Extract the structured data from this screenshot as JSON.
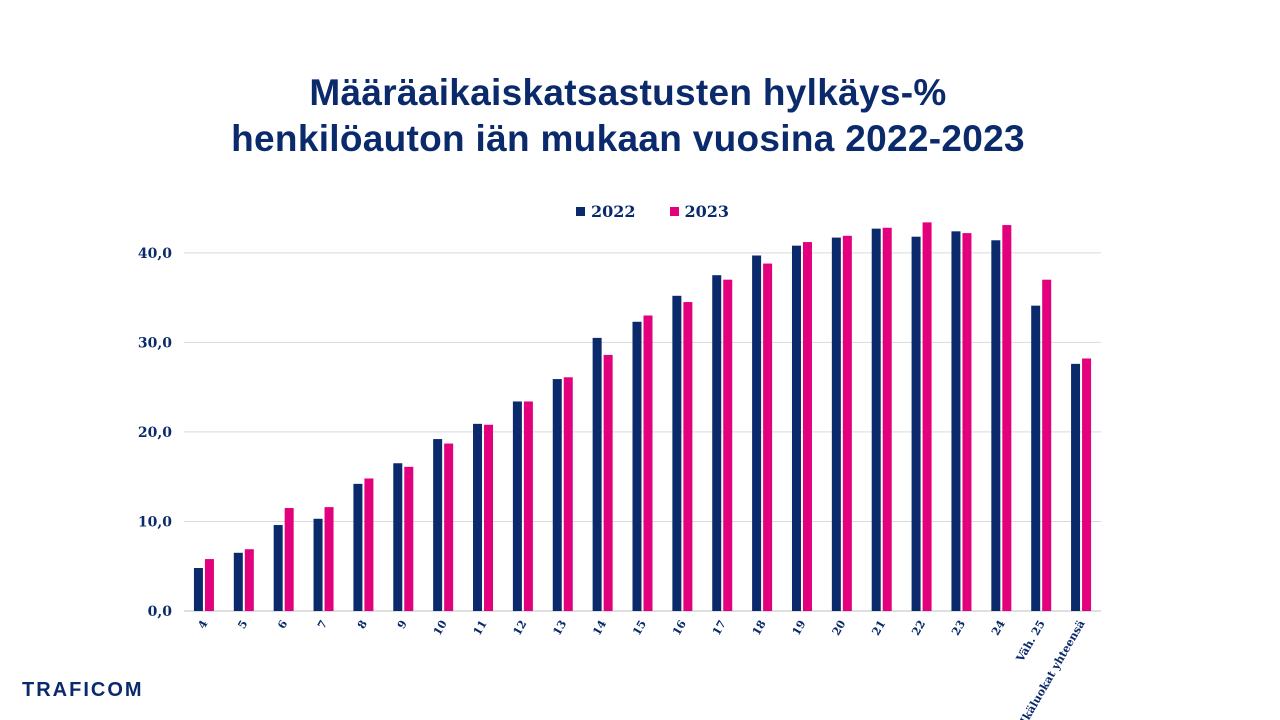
{
  "chart_data": {
    "type": "bar",
    "title_line1": "Määräaikaiskatsastusten hylkäys-%",
    "title_line2": "henkilöauton iän mukaan vuosina 2022-2023",
    "categories": [
      "4",
      "5",
      "6",
      "7",
      "8",
      "9",
      "10",
      "11",
      "12",
      "13",
      "14",
      "15",
      "16",
      "17",
      "18",
      "19",
      "20",
      "21",
      "22",
      "23",
      "24",
      "Väh. 25",
      "Ikäluokat yhteensä"
    ],
    "series": [
      {
        "name": "2022",
        "color": "#0b2a6b",
        "values": [
          4.8,
          6.5,
          9.6,
          10.3,
          14.2,
          16.5,
          19.2,
          20.9,
          23.4,
          25.9,
          30.5,
          32.3,
          35.2,
          37.5,
          39.7,
          40.8,
          41.7,
          42.7,
          41.8,
          42.4,
          41.4,
          34.1,
          27.6
        ]
      },
      {
        "name": "2023",
        "color": "#e3007d",
        "values": [
          5.8,
          6.9,
          11.5,
          11.6,
          14.8,
          16.1,
          18.7,
          20.8,
          23.4,
          26.1,
          28.6,
          33.0,
          34.5,
          37.0,
          38.8,
          41.2,
          41.9,
          42.8,
          43.4,
          42.2,
          43.1,
          37.0,
          28.2
        ]
      }
    ],
    "yticks": [
      "0,0",
      "10,0",
      "20,0",
      "30,0",
      "40,0"
    ],
    "ylim": [
      0,
      44
    ],
    "grid": true,
    "legend_position": "top-center"
  },
  "brand": {
    "logo_text": "TRAFICOM"
  }
}
